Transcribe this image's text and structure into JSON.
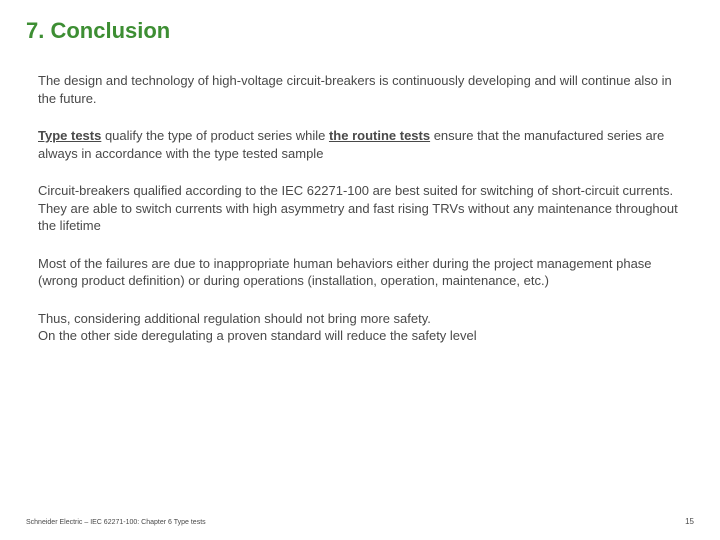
{
  "title": "7. Conclusion",
  "paragraphs": {
    "p1": "The design and technology of high-voltage circuit-breakers is continuously developing and will continue also in the future.",
    "p2_a": "Type tests",
    "p2_b": " qualify the type of product series while ",
    "p2_c": "the routine tests",
    "p2_d": " ensure that the manufactured series are always in accordance with the type tested sample",
    "p3": "Circuit-breakers qualified according to the IEC 62271-100 are best suited for switching of short-circuit currents. They are able to switch currents with high asymmetry and fast rising TRVs without any maintenance throughout the lifetime",
    "p4": "Most of the failures are due to inappropriate human behaviors either during the project management phase (wrong product definition) or during operations (installation, operation, maintenance, etc.)",
    "p5a": "Thus, considering additional regulation should not bring more safety.",
    "p5b": "On the other side deregulating a proven standard will reduce the safety level"
  },
  "footer": {
    "text": "Schneider Electric – IEC 62271-100: Chapter 6 Type tests",
    "page": "15"
  },
  "colors": {
    "title": "#3d8e33",
    "body": "#494949",
    "background": "#ffffff"
  },
  "typography": {
    "title_fontsize": 22,
    "body_fontsize": 13,
    "footer_fontsize": 7
  }
}
